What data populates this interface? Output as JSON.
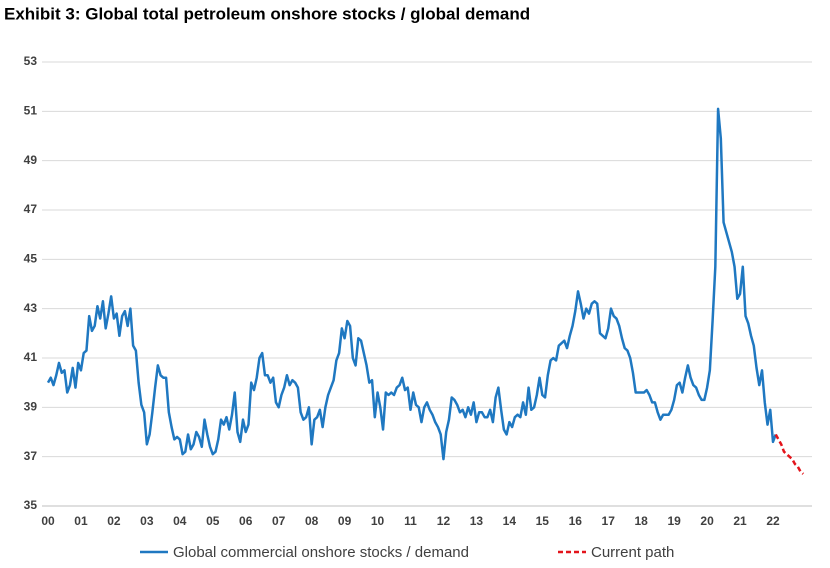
{
  "chart_data": {
    "type": "line",
    "title": "Exhibit 3: Global total petroleum onshore stocks / global demand",
    "categories": [
      "00",
      null,
      null,
      null,
      null,
      null,
      null,
      null,
      null,
      null,
      null,
      null,
      "01",
      null,
      null,
      null,
      null,
      null,
      null,
      null,
      null,
      null,
      null,
      null,
      "02",
      null,
      null,
      null,
      null,
      null,
      null,
      null,
      null,
      null,
      null,
      null,
      "03",
      null,
      null,
      null,
      null,
      null,
      null,
      null,
      null,
      null,
      null,
      null,
      "04",
      null,
      null,
      null,
      null,
      null,
      null,
      null,
      null,
      null,
      null,
      null,
      "05",
      null,
      null,
      null,
      null,
      null,
      null,
      null,
      null,
      null,
      null,
      null,
      "06",
      null,
      null,
      null,
      null,
      null,
      null,
      null,
      null,
      null,
      null,
      null,
      "07",
      null,
      null,
      null,
      null,
      null,
      null,
      null,
      null,
      null,
      null,
      null,
      "08",
      null,
      null,
      null,
      null,
      null,
      null,
      null,
      null,
      null,
      null,
      null,
      "09",
      null,
      null,
      null,
      null,
      null,
      null,
      null,
      null,
      null,
      null,
      null,
      "10",
      null,
      null,
      null,
      null,
      null,
      null,
      null,
      null,
      null,
      null,
      null,
      "11",
      null,
      null,
      null,
      null,
      null,
      null,
      null,
      null,
      null,
      null,
      null,
      "12",
      null,
      null,
      null,
      null,
      null,
      null,
      null,
      null,
      null,
      null,
      null,
      "13",
      null,
      null,
      null,
      null,
      null,
      null,
      null,
      null,
      null,
      null,
      null,
      "14",
      null,
      null,
      null,
      null,
      null,
      null,
      null,
      null,
      null,
      null,
      null,
      "15",
      null,
      null,
      null,
      null,
      null,
      null,
      null,
      null,
      null,
      null,
      null,
      "16",
      null,
      null,
      null,
      null,
      null,
      null,
      null,
      null,
      null,
      null,
      null,
      "17",
      null,
      null,
      null,
      null,
      null,
      null,
      null,
      null,
      null,
      null,
      null,
      "18",
      null,
      null,
      null,
      null,
      null,
      null,
      null,
      null,
      null,
      null,
      null,
      "19",
      null,
      null,
      null,
      null,
      null,
      null,
      null,
      null,
      null,
      null,
      null,
      "20",
      null,
      null,
      null,
      null,
      null,
      null,
      null,
      null,
      null,
      null,
      null,
      "21",
      null,
      null,
      null,
      null,
      null,
      null,
      null,
      null,
      null,
      null,
      null,
      "22",
      null,
      null,
      null,
      null,
      null,
      null,
      null,
      null,
      null,
      null,
      null
    ],
    "series": [
      {
        "name": "Global commercial onshore stocks / demand",
        "color": "#1f78c1",
        "style": "solid",
        "values": [
          40.0,
          40.2,
          39.9,
          40.3,
          40.8,
          40.4,
          40.5,
          39.6,
          39.9,
          40.6,
          39.8,
          40.8,
          40.5,
          41.2,
          41.3,
          42.7,
          42.1,
          42.3,
          43.1,
          42.6,
          43.3,
          42.2,
          42.8,
          43.5,
          42.6,
          42.8,
          41.9,
          42.7,
          42.9,
          42.3,
          43.0,
          41.5,
          41.3,
          40.0,
          39.1,
          38.8,
          37.5,
          37.9,
          38.8,
          39.8,
          40.7,
          40.3,
          40.2,
          40.2,
          38.8,
          38.2,
          37.7,
          37.8,
          37.7,
          37.1,
          37.2,
          37.9,
          37.3,
          37.5,
          38.0,
          37.8,
          37.4,
          38.5,
          37.9,
          37.4,
          37.1,
          37.2,
          37.7,
          38.5,
          38.3,
          38.6,
          38.1,
          38.7,
          39.6,
          38.0,
          37.6,
          38.5,
          38.0,
          38.3,
          40.0,
          39.7,
          40.2,
          41.0,
          41.2,
          40.3,
          40.3,
          40.0,
          40.2,
          39.2,
          39.0,
          39.5,
          39.8,
          40.3,
          39.9,
          40.1,
          40.0,
          39.8,
          38.8,
          38.5,
          38.6,
          39.0,
          37.5,
          38.5,
          38.6,
          38.9,
          38.2,
          39.0,
          39.5,
          39.8,
          40.1,
          40.9,
          41.2,
          42.2,
          41.8,
          42.5,
          42.3,
          41.0,
          40.7,
          41.8,
          41.7,
          41.2,
          40.7,
          40.0,
          40.1,
          38.6,
          39.6,
          39.0,
          38.1,
          39.6,
          39.5,
          39.6,
          39.5,
          39.8,
          39.9,
          40.2,
          39.7,
          39.8,
          38.9,
          39.6,
          39.1,
          39.0,
          38.4,
          39.0,
          39.2,
          38.9,
          38.7,
          38.4,
          38.2,
          37.9,
          36.9,
          38.0,
          38.5,
          39.4,
          39.3,
          39.1,
          38.8,
          38.9,
          38.6,
          39.0,
          38.7,
          39.2,
          38.4,
          38.8,
          38.8,
          38.6,
          38.6,
          38.9,
          38.4,
          39.4,
          39.8,
          38.9,
          38.1,
          37.9,
          38.4,
          38.2,
          38.6,
          38.7,
          38.6,
          39.2,
          38.7,
          39.8,
          38.9,
          39.0,
          39.5,
          40.2,
          39.5,
          39.4,
          40.3,
          40.9,
          41.0,
          40.9,
          41.5,
          41.6,
          41.7,
          41.4,
          41.9,
          42.3,
          42.9,
          43.7,
          43.2,
          42.6,
          43.0,
          42.8,
          43.2,
          43.3,
          43.2,
          42.0,
          41.9,
          41.8,
          42.2,
          43.0,
          42.7,
          42.6,
          42.3,
          41.8,
          41.4,
          41.3,
          41.0,
          40.4,
          39.6,
          39.6,
          39.6,
          39.6,
          39.7,
          39.5,
          39.2,
          39.2,
          38.8,
          38.5,
          38.7,
          38.7,
          38.7,
          38.9,
          39.3,
          39.9,
          40.0,
          39.6,
          40.2,
          40.7,
          40.2,
          39.9,
          39.8,
          39.5,
          39.3,
          39.3,
          39.8,
          40.5,
          42.5,
          44.7,
          51.1,
          49.9,
          46.5,
          46.1,
          45.7,
          45.3,
          44.7,
          43.4,
          43.6,
          44.7,
          42.7,
          42.4,
          41.9,
          41.5,
          40.6,
          39.9,
          40.5,
          39.2,
          38.3,
          38.9,
          37.6,
          37.9,
          null,
          null,
          null,
          null,
          null,
          null,
          null,
          null,
          null,
          null
        ]
      },
      {
        "name": "Current path",
        "color": "#e3141b",
        "style": "dashed",
        "values": [
          null,
          null,
          null,
          null,
          null,
          null,
          null,
          null,
          null,
          null,
          null,
          null,
          null,
          null,
          null,
          null,
          null,
          null,
          null,
          null,
          null,
          null,
          null,
          null,
          null,
          null,
          null,
          null,
          null,
          null,
          null,
          null,
          null,
          null,
          null,
          null,
          null,
          null,
          null,
          null,
          null,
          null,
          null,
          null,
          null,
          null,
          null,
          null,
          null,
          null,
          null,
          null,
          null,
          null,
          null,
          null,
          null,
          null,
          null,
          null,
          null,
          null,
          null,
          null,
          null,
          null,
          null,
          null,
          null,
          null,
          null,
          null,
          null,
          null,
          null,
          null,
          null,
          null,
          null,
          null,
          null,
          null,
          null,
          null,
          null,
          null,
          null,
          null,
          null,
          null,
          null,
          null,
          null,
          null,
          null,
          null,
          null,
          null,
          null,
          null,
          null,
          null,
          null,
          null,
          null,
          null,
          null,
          null,
          null,
          null,
          null,
          null,
          null,
          null,
          null,
          null,
          null,
          null,
          null,
          null,
          null,
          null,
          null,
          null,
          null,
          null,
          null,
          null,
          null,
          null,
          null,
          null,
          null,
          null,
          null,
          null,
          null,
          null,
          null,
          null,
          null,
          null,
          null,
          null,
          null,
          null,
          null,
          null,
          null,
          null,
          null,
          null,
          null,
          null,
          null,
          null,
          null,
          null,
          null,
          null,
          null,
          null,
          null,
          null,
          null,
          null,
          null,
          null,
          null,
          null,
          null,
          null,
          null,
          null,
          null,
          null,
          null,
          null,
          null,
          null,
          null,
          null,
          null,
          null,
          null,
          null,
          null,
          null,
          null,
          null,
          null,
          null,
          null,
          null,
          null,
          null,
          null,
          null,
          null,
          null,
          null,
          null,
          null,
          null,
          null,
          null,
          null,
          null,
          null,
          null,
          null,
          null,
          null,
          null,
          null,
          null,
          null,
          null,
          null,
          null,
          null,
          null,
          null,
          null,
          null,
          null,
          null,
          null,
          null,
          null,
          null,
          null,
          null,
          null,
          null,
          null,
          null,
          null,
          null,
          null,
          null,
          null,
          null,
          null,
          null,
          null,
          null,
          null,
          null,
          null,
          null,
          null,
          null,
          null,
          null,
          null,
          null,
          null,
          null,
          null,
          null,
          null,
          null,
          null,
          null,
          37.9,
          37.7,
          37.5,
          37.2,
          37.1,
          37.0,
          36.9,
          36.7,
          36.6,
          36.4,
          36.3
        ]
      }
    ],
    "ylim": [
      35,
      53
    ],
    "yticks": [
      35,
      37,
      39,
      41,
      43,
      45,
      47,
      49,
      51,
      53
    ],
    "grid": true,
    "legend": "bottom"
  }
}
